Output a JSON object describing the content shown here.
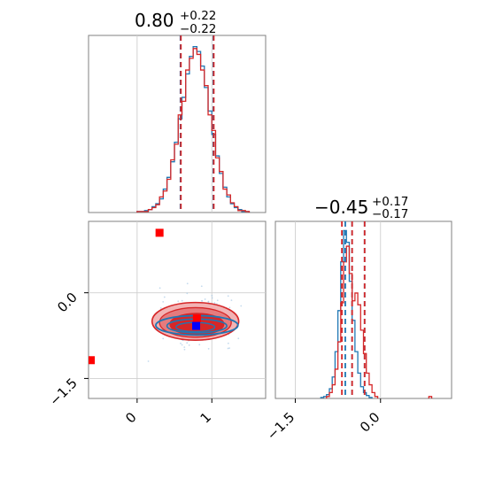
{
  "chart_data": {
    "type": "corner",
    "colors": {
      "series_a": "#1f77b4",
      "series_b": "#d62728",
      "truth_marker": "#ff0000",
      "blue_marker": "#0000ff"
    },
    "param1": {
      "title": {
        "value": "0.80",
        "plus": "+0.22",
        "minus": "−0.22"
      },
      "xlim": [
        -0.65,
        1.72
      ],
      "xticks": [
        0,
        1
      ],
      "xtick_labels": [
        "0",
        "1"
      ],
      "quantiles_blue": [
        0.58,
        1.02
      ],
      "quantiles_red": [
        0.58,
        1.02
      ]
    },
    "param2": {
      "title": {
        "value": "−0.45",
        "plus": "+0.17",
        "minus": "−0.17"
      },
      "xlim": [
        -1.85,
        1.25
      ],
      "yticks": [
        0.0,
        -1.5
      ],
      "ytick_labels": [
        "0.0",
        "−1.5"
      ],
      "xticks": [
        -1.5,
        0.0
      ],
      "xtick_labels": [
        "−1.5",
        "0.0"
      ],
      "quantiles_blue": [
        -0.62,
        -0.5,
        -0.28
      ],
      "quantiles_red": [
        -0.68,
        -0.5,
        -0.28
      ]
    },
    "joint": {
      "xlim": [
        -0.65,
        1.72
      ],
      "ylim": [
        -1.85,
        1.25
      ],
      "red_markers": [
        {
          "x": 0.3,
          "y": 1.05
        },
        {
          "x": -0.62,
          "y": -1.18
        },
        {
          "x": 0.8,
          "y": -0.45
        }
      ],
      "blue_markers": [
        {
          "x": 0.79,
          "y": -0.58
        }
      ]
    },
    "hist1_blue": [
      {
        "x": 0.0,
        "y": 1
      },
      {
        "x": 0.05,
        "y": 1
      },
      {
        "x": 0.1,
        "y": 2
      },
      {
        "x": 0.15,
        "y": 3
      },
      {
        "x": 0.2,
        "y": 6
      },
      {
        "x": 0.25,
        "y": 9
      },
      {
        "x": 0.3,
        "y": 14
      },
      {
        "x": 0.35,
        "y": 24
      },
      {
        "x": 0.4,
        "y": 36
      },
      {
        "x": 0.45,
        "y": 52
      },
      {
        "x": 0.5,
        "y": 72
      },
      {
        "x": 0.55,
        "y": 96
      },
      {
        "x": 0.6,
        "y": 118
      },
      {
        "x": 0.65,
        "y": 142
      },
      {
        "x": 0.7,
        "y": 160
      },
      {
        "x": 0.75,
        "y": 170
      },
      {
        "x": 0.8,
        "y": 165
      },
      {
        "x": 0.85,
        "y": 150
      },
      {
        "x": 0.9,
        "y": 128
      },
      {
        "x": 0.95,
        "y": 104
      },
      {
        "x": 1.0,
        "y": 80
      },
      {
        "x": 1.05,
        "y": 58
      },
      {
        "x": 1.1,
        "y": 40
      },
      {
        "x": 1.15,
        "y": 26
      },
      {
        "x": 1.2,
        "y": 16
      },
      {
        "x": 1.25,
        "y": 9
      },
      {
        "x": 1.3,
        "y": 5
      },
      {
        "x": 1.35,
        "y": 3
      },
      {
        "x": 1.4,
        "y": 1
      },
      {
        "x": 1.45,
        "y": 1
      }
    ],
    "hist1_red": [
      {
        "x": 0.0,
        "y": 1
      },
      {
        "x": 0.05,
        "y": 1
      },
      {
        "x": 0.1,
        "y": 1
      },
      {
        "x": 0.15,
        "y": 3
      },
      {
        "x": 0.2,
        "y": 5
      },
      {
        "x": 0.25,
        "y": 8
      },
      {
        "x": 0.3,
        "y": 16
      },
      {
        "x": 0.35,
        "y": 22
      },
      {
        "x": 0.4,
        "y": 34
      },
      {
        "x": 0.45,
        "y": 54
      },
      {
        "x": 0.5,
        "y": 70
      },
      {
        "x": 0.55,
        "y": 100
      },
      {
        "x": 0.6,
        "y": 114
      },
      {
        "x": 0.65,
        "y": 146
      },
      {
        "x": 0.7,
        "y": 158
      },
      {
        "x": 0.75,
        "y": 168
      },
      {
        "x": 0.8,
        "y": 162
      },
      {
        "x": 0.85,
        "y": 146
      },
      {
        "x": 0.9,
        "y": 130
      },
      {
        "x": 0.95,
        "y": 100
      },
      {
        "x": 1.0,
        "y": 84
      },
      {
        "x": 1.05,
        "y": 56
      },
      {
        "x": 1.1,
        "y": 42
      },
      {
        "x": 1.15,
        "y": 24
      },
      {
        "x": 1.2,
        "y": 18
      },
      {
        "x": 1.25,
        "y": 10
      },
      {
        "x": 1.3,
        "y": 6
      },
      {
        "x": 1.35,
        "y": 2
      },
      {
        "x": 1.4,
        "y": 2
      },
      {
        "x": 1.45,
        "y": 1
      }
    ],
    "hist2_blue": [
      {
        "x": -1.05,
        "y": 1
      },
      {
        "x": -1.0,
        "y": 2
      },
      {
        "x": -0.95,
        "y": 4
      },
      {
        "x": -0.9,
        "y": 10
      },
      {
        "x": -0.85,
        "y": 22
      },
      {
        "x": -0.8,
        "y": 48
      },
      {
        "x": -0.75,
        "y": 90
      },
      {
        "x": -0.7,
        "y": 140
      },
      {
        "x": -0.65,
        "y": 172
      },
      {
        "x": -0.6,
        "y": 160
      },
      {
        "x": -0.55,
        "y": 120
      },
      {
        "x": -0.5,
        "y": 80
      },
      {
        "x": -0.45,
        "y": 48
      },
      {
        "x": -0.4,
        "y": 26
      },
      {
        "x": -0.35,
        "y": 12
      },
      {
        "x": -0.3,
        "y": 6
      },
      {
        "x": -0.25,
        "y": 3
      },
      {
        "x": -0.2,
        "y": 1
      }
    ],
    "hist2_red": [
      {
        "x": -0.95,
        "y": 2
      },
      {
        "x": -0.9,
        "y": 6
      },
      {
        "x": -0.85,
        "y": 14
      },
      {
        "x": -0.8,
        "y": 30
      },
      {
        "x": -0.75,
        "y": 58
      },
      {
        "x": -0.7,
        "y": 98
      },
      {
        "x": -0.65,
        "y": 140
      },
      {
        "x": -0.6,
        "y": 156
      },
      {
        "x": -0.55,
        "y": 128
      },
      {
        "x": -0.5,
        "y": 100
      },
      {
        "x": -0.45,
        "y": 108
      },
      {
        "x": -0.4,
        "y": 96
      },
      {
        "x": -0.35,
        "y": 70
      },
      {
        "x": -0.3,
        "y": 46
      },
      {
        "x": -0.25,
        "y": 26
      },
      {
        "x": -0.2,
        "y": 14
      },
      {
        "x": -0.15,
        "y": 6
      },
      {
        "x": -0.1,
        "y": 2
      },
      {
        "x": 0.85,
        "y": 2
      }
    ]
  }
}
